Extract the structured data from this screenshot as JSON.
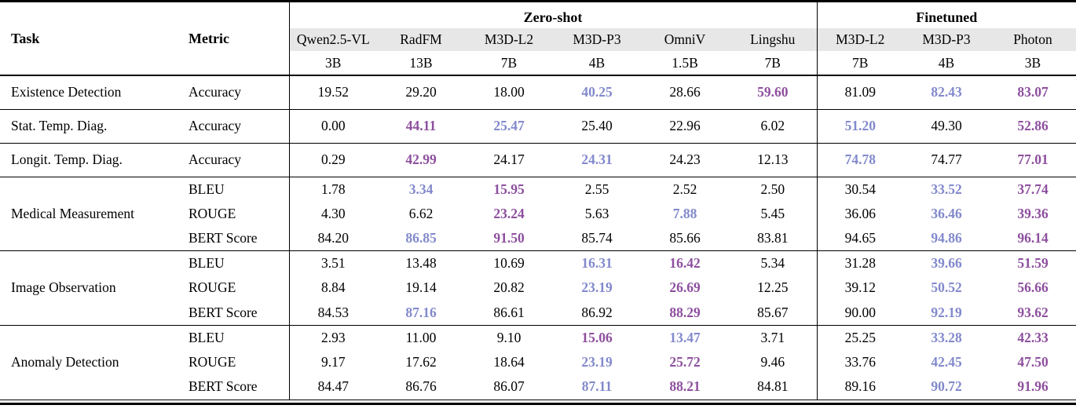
{
  "table": {
    "task_header": "Task",
    "metric_header": "Metric",
    "colors": {
      "best_value": "#8d4f9e",
      "second_value": "#8289cc",
      "model_row_stripe": "#e7e7e7",
      "rule": "#000000"
    },
    "groups": [
      {
        "label": "Zero-shot",
        "models": [
          {
            "name": "Qwen2.5-VL",
            "size": "3B"
          },
          {
            "name": "RadFM",
            "size": "13B"
          },
          {
            "name": "M3D-L2",
            "size": "7B"
          },
          {
            "name": "M3D-P3",
            "size": "4B"
          },
          {
            "name": "OmniV",
            "size": "1.5B"
          },
          {
            "name": "Lingshu",
            "size": "7B"
          }
        ]
      },
      {
        "label": "Finetuned",
        "models": [
          {
            "name": "M3D-L2",
            "size": "7B"
          },
          {
            "name": "M3D-P3",
            "size": "4B"
          },
          {
            "name": "Photon",
            "size": "3B"
          }
        ]
      }
    ],
    "sections": [
      {
        "task": "Existence Detection",
        "rows": [
          {
            "metric": "Accuracy",
            "values": [
              "19.52",
              "29.20",
              "18.00",
              "40.25",
              "28.66",
              "59.60",
              "81.09",
              "82.43",
              "83.07"
            ],
            "highlight": [
              null,
              null,
              null,
              "second",
              null,
              "best",
              null,
              "second",
              "best"
            ]
          }
        ]
      },
      {
        "task": "Stat. Temp. Diag.",
        "rows": [
          {
            "metric": "Accuracy",
            "values": [
              "0.00",
              "44.11",
              "25.47",
              "25.40",
              "22.96",
              "6.02",
              "51.20",
              "49.30",
              "52.86"
            ],
            "highlight": [
              null,
              "best",
              "second",
              null,
              null,
              null,
              "second",
              null,
              "best"
            ]
          }
        ]
      },
      {
        "task": "Longit. Temp. Diag.",
        "rows": [
          {
            "metric": "Accuracy",
            "values": [
              "0.29",
              "42.99",
              "24.17",
              "24.31",
              "24.23",
              "12.13",
              "74.78",
              "74.77",
              "77.01"
            ],
            "highlight": [
              null,
              "best",
              null,
              "second",
              null,
              null,
              "second",
              null,
              "best"
            ]
          }
        ]
      },
      {
        "task": "Medical Measurement",
        "rows": [
          {
            "metric": "BLEU",
            "values": [
              "1.78",
              "3.34",
              "15.95",
              "2.55",
              "2.52",
              "2.50",
              "30.54",
              "33.52",
              "37.74"
            ],
            "highlight": [
              null,
              "second",
              "best",
              null,
              null,
              null,
              null,
              "second",
              "best"
            ]
          },
          {
            "metric": "ROUGE",
            "values": [
              "4.30",
              "6.62",
              "23.24",
              "5.63",
              "7.88",
              "5.45",
              "36.06",
              "36.46",
              "39.36"
            ],
            "highlight": [
              null,
              null,
              "best",
              null,
              "second",
              null,
              null,
              "second",
              "best"
            ]
          },
          {
            "metric": "BERT Score",
            "values": [
              "84.20",
              "86.85",
              "91.50",
              "85.74",
              "85.66",
              "83.81",
              "94.65",
              "94.86",
              "96.14"
            ],
            "highlight": [
              null,
              "second",
              "best",
              null,
              null,
              null,
              null,
              "second",
              "best"
            ]
          }
        ]
      },
      {
        "task": "Image Observation",
        "rows": [
          {
            "metric": "BLEU",
            "values": [
              "3.51",
              "13.48",
              "10.69",
              "16.31",
              "16.42",
              "5.34",
              "31.28",
              "39.66",
              "51.59"
            ],
            "highlight": [
              null,
              null,
              null,
              "second",
              "best",
              null,
              null,
              "second",
              "best"
            ]
          },
          {
            "metric": "ROUGE",
            "values": [
              "8.84",
              "19.14",
              "20.82",
              "23.19",
              "26.69",
              "12.25",
              "39.12",
              "50.52",
              "56.66"
            ],
            "highlight": [
              null,
              null,
              null,
              "second",
              "best",
              null,
              null,
              "second",
              "best"
            ]
          },
          {
            "metric": "BERT Score",
            "values": [
              "84.53",
              "87.16",
              "86.61",
              "86.92",
              "88.29",
              "85.67",
              "90.00",
              "92.19",
              "93.62"
            ],
            "highlight": [
              null,
              "second",
              null,
              null,
              "best",
              null,
              null,
              "second",
              "best"
            ]
          }
        ]
      },
      {
        "task": "Anomaly Detection",
        "rows": [
          {
            "metric": "BLEU",
            "values": [
              "2.93",
              "11.00",
              "9.10",
              "15.06",
              "13.47",
              "3.71",
              "25.25",
              "33.28",
              "42.33"
            ],
            "highlight": [
              null,
              null,
              null,
              "best",
              "second",
              null,
              null,
              "second",
              "best"
            ]
          },
          {
            "metric": "ROUGE",
            "values": [
              "9.17",
              "17.62",
              "18.64",
              "23.19",
              "25.72",
              "9.46",
              "33.76",
              "42.45",
              "47.50"
            ],
            "highlight": [
              null,
              null,
              null,
              "second",
              "best",
              null,
              null,
              "second",
              "best"
            ]
          },
          {
            "metric": "BERT Score",
            "values": [
              "84.47",
              "86.76",
              "86.07",
              "87.11",
              "88.21",
              "84.81",
              "89.16",
              "90.72",
              "91.96"
            ],
            "highlight": [
              null,
              null,
              null,
              "second",
              "best",
              null,
              null,
              "second",
              "best"
            ]
          }
        ]
      }
    ]
  }
}
